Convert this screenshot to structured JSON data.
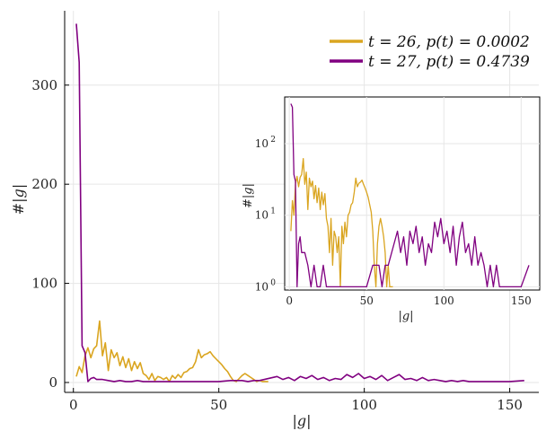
{
  "chart_data": [
    {
      "type": "line",
      "xlabel": "|g|",
      "ylabel": "#|g|",
      "xlim": [
        -3,
        160
      ],
      "ylim": [
        -10,
        375
      ],
      "xticks": [
        0,
        50,
        100,
        150
      ],
      "yticks": [
        0,
        100,
        200,
        300
      ],
      "grid": true,
      "legend_position": "top-right",
      "series": [
        {
          "name": "t = 26, p(t) = 0.0002",
          "color": "#DAA520",
          "x": [
            1,
            2,
            3,
            4,
            5,
            6,
            7,
            8,
            9,
            10,
            11,
            12,
            13,
            14,
            15,
            16,
            17,
            18,
            19,
            20,
            21,
            22,
            23,
            24,
            25,
            26,
            27,
            28,
            29,
            30,
            31,
            32,
            33,
            34,
            35,
            36,
            37,
            38,
            39,
            40,
            41,
            42,
            43,
            44,
            45,
            46,
            47,
            48,
            49,
            50,
            51,
            52,
            53,
            54,
            55,
            56,
            57,
            58,
            59,
            60,
            61,
            62,
            63,
            64,
            65,
            66,
            67
          ],
          "y": [
            6,
            16,
            10,
            27,
            35,
            25,
            34,
            37,
            62,
            27,
            40,
            12,
            33,
            25,
            30,
            17,
            26,
            15,
            24,
            12,
            21,
            14,
            20,
            9,
            7,
            3,
            9,
            2,
            6,
            5,
            3,
            5,
            1,
            7,
            4,
            8,
            5,
            10,
            11,
            14,
            15,
            21,
            33,
            25,
            28,
            29,
            31,
            27,
            24,
            21,
            18,
            14,
            11,
            6,
            2,
            1,
            4,
            7,
            9,
            7,
            5,
            3,
            1,
            2,
            1,
            1,
            1
          ]
        },
        {
          "name": "t = 27, p(t) = 0.4739",
          "color": "#800080",
          "x": [
            1,
            2,
            3,
            4,
            5,
            6,
            7,
            8,
            10,
            12,
            14,
            16,
            18,
            20,
            22,
            24,
            26,
            28,
            30,
            40,
            50,
            54,
            56,
            58,
            60,
            62,
            64,
            70,
            72,
            74,
            76,
            78,
            80,
            82,
            84,
            86,
            88,
            90,
            92,
            94,
            96,
            98,
            100,
            102,
            104,
            106,
            108,
            110,
            112,
            114,
            116,
            118,
            120,
            122,
            124,
            126,
            128,
            130,
            132,
            134,
            136,
            140,
            145,
            150,
            155
          ],
          "y": [
            362,
            323,
            37,
            30,
            1,
            4,
            5,
            3,
            3,
            2,
            1,
            2,
            1,
            1,
            2,
            1,
            1,
            1,
            1,
            1,
            1,
            2,
            2,
            2,
            1,
            2,
            2,
            6,
            3,
            5,
            2,
            6,
            4,
            7,
            3,
            5,
            2,
            4,
            3,
            8,
            5,
            9,
            4,
            6,
            3,
            7,
            2,
            5,
            8,
            3,
            4,
            2,
            5,
            2,
            3,
            2,
            1,
            2,
            1,
            2,
            1,
            1,
            1,
            1,
            2
          ]
        }
      ]
    },
    {
      "type": "line",
      "inset": true,
      "xlabel": "|g|",
      "ylabel": "#|g|",
      "yscale": "log",
      "xlim": [
        -3,
        162
      ],
      "ylim": [
        0.9,
        450
      ],
      "xticks": [
        0,
        50,
        100,
        150
      ],
      "yticks": [
        1,
        10,
        100
      ],
      "ytick_labels": [
        "10^0",
        "10^1",
        "10^2"
      ],
      "grid": true,
      "series": [
        {
          "name": "t = 26, p(t) = 0.0002",
          "color": "#DAA520",
          "x": [
            1,
            2,
            3,
            4,
            5,
            6,
            7,
            8,
            9,
            10,
            11,
            12,
            13,
            14,
            15,
            16,
            17,
            18,
            19,
            20,
            21,
            22,
            23,
            24,
            25,
            26,
            27,
            28,
            29,
            30,
            31,
            32,
            33,
            34,
            35,
            36,
            37,
            38,
            39,
            40,
            41,
            42,
            43,
            44,
            45,
            46,
            47,
            48,
            49,
            50,
            51,
            52,
            53,
            54,
            55,
            56,
            57,
            58,
            59,
            60,
            61,
            62,
            63,
            64,
            65,
            66,
            67
          ],
          "y": [
            6,
            16,
            10,
            27,
            35,
            25,
            34,
            37,
            62,
            27,
            40,
            12,
            33,
            25,
            30,
            17,
            26,
            15,
            24,
            12,
            21,
            14,
            20,
            9,
            7,
            3,
            9,
            2,
            6,
            5,
            3,
            5,
            1,
            7,
            4,
            8,
            5,
            10,
            11,
            14,
            15,
            21,
            33,
            25,
            28,
            29,
            31,
            27,
            24,
            21,
            18,
            14,
            11,
            6,
            2,
            1,
            4,
            7,
            9,
            7,
            5,
            3,
            1,
            2,
            1,
            1,
            1
          ]
        },
        {
          "name": "t = 27, p(t) = 0.4739",
          "color": "#800080",
          "x": [
            1,
            2,
            3,
            4,
            5,
            6,
            7,
            8,
            10,
            12,
            14,
            16,
            18,
            20,
            22,
            24,
            26,
            28,
            30,
            40,
            50,
            54,
            56,
            58,
            60,
            62,
            64,
            70,
            72,
            74,
            76,
            78,
            80,
            82,
            84,
            86,
            88,
            90,
            92,
            94,
            96,
            98,
            100,
            102,
            104,
            106,
            108,
            110,
            112,
            114,
            116,
            118,
            120,
            122,
            124,
            126,
            128,
            130,
            132,
            134,
            136,
            140,
            145,
            150,
            155
          ],
          "y": [
            362,
            323,
            37,
            30,
            1,
            4,
            5,
            3,
            3,
            2,
            1,
            2,
            1,
            1,
            2,
            1,
            1,
            1,
            1,
            1,
            1,
            2,
            2,
            2,
            1,
            2,
            2,
            6,
            3,
            5,
            2,
            6,
            4,
            7,
            3,
            5,
            2,
            4,
            3,
            8,
            5,
            9,
            4,
            6,
            3,
            7,
            2,
            5,
            8,
            3,
            4,
            2,
            5,
            2,
            3,
            2,
            1,
            2,
            1,
            2,
            1,
            1,
            1,
            1,
            2
          ]
        }
      ]
    }
  ]
}
